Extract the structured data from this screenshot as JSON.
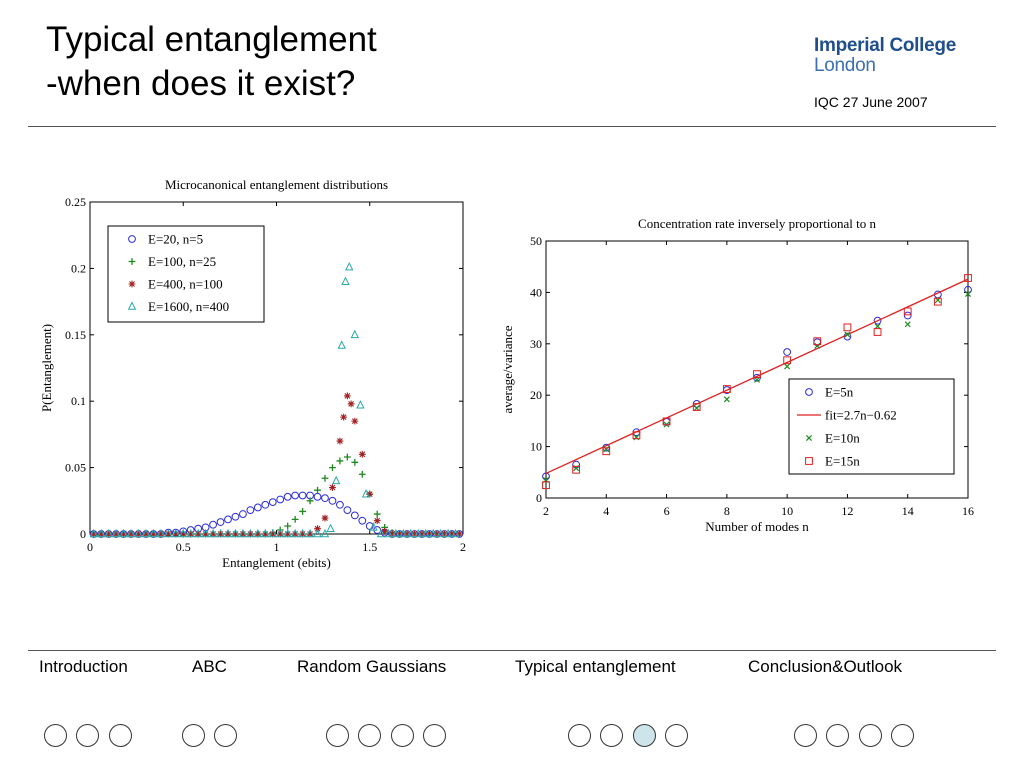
{
  "slide": {
    "title_line1": "Typical entanglement",
    "title_line2": "-when does it exist?",
    "logo_line1": "Imperial College",
    "logo_line2": "London",
    "date": "IQC 27 June 2007"
  },
  "nav": {
    "sections": [
      {
        "label": "Introduction",
        "dots": 3
      },
      {
        "label": "ABC",
        "dots": 2
      },
      {
        "label": "Random Gaussians",
        "dots": 4
      },
      {
        "label": "Typical entanglement",
        "dots": 4,
        "active_index": 2
      },
      {
        "label": "Conclusion&Outlook",
        "dots": 4
      }
    ]
  },
  "chart_data": [
    {
      "type": "scatter",
      "title": "Microcanonical entanglement distributions",
      "xlabel": "Entanglement (ebits)",
      "ylabel": "P(Entanglement)",
      "xlim": [
        0,
        2
      ],
      "ylim": [
        0,
        0.25
      ],
      "xticks": [
        "0",
        "0.5",
        "1",
        "1.5",
        "2"
      ],
      "yticks": [
        "0",
        "0.05",
        "0.1",
        "0.15",
        "0.2",
        "0.25"
      ],
      "legend_position": "top-left",
      "series": [
        {
          "name": "E=20,    n=5",
          "marker": "circle",
          "color": "#2b2bd6",
          "x": [
            0.02,
            0.06,
            0.1,
            0.14,
            0.18,
            0.22,
            0.26,
            0.3,
            0.34,
            0.38,
            0.42,
            0.46,
            0.5,
            0.54,
            0.58,
            0.62,
            0.66,
            0.7,
            0.74,
            0.78,
            0.82,
            0.86,
            0.9,
            0.94,
            0.98,
            1.02,
            1.06,
            1.1,
            1.14,
            1.18,
            1.22,
            1.26,
            1.3,
            1.34,
            1.38,
            1.42,
            1.46,
            1.5,
            1.54,
            1.58,
            1.62,
            1.66,
            1.7,
            1.74,
            1.78,
            1.82,
            1.86,
            1.9,
            1.94,
            1.98
          ],
          "y": [
            0,
            0,
            0,
            0,
            0,
            0,
            0,
            0,
            0,
            0,
            0.001,
            0.001,
            0.002,
            0.003,
            0.004,
            0.005,
            0.007,
            0.009,
            0.011,
            0.013,
            0.015,
            0.018,
            0.02,
            0.022,
            0.024,
            0.026,
            0.028,
            0.029,
            0.029,
            0.029,
            0.028,
            0.027,
            0.025,
            0.022,
            0.018,
            0.014,
            0.01,
            0.006,
            0.003,
            0.001,
            0,
            0,
            0,
            0,
            0,
            0,
            0,
            0,
            0,
            0
          ]
        },
        {
          "name": "E=100,   n=25",
          "marker": "plus",
          "color": "#1e8a1e",
          "x": [
            0.02,
            0.06,
            0.1,
            0.14,
            0.18,
            0.22,
            0.26,
            0.3,
            0.34,
            0.38,
            0.42,
            0.46,
            0.5,
            0.54,
            0.58,
            0.62,
            0.66,
            0.7,
            0.74,
            0.78,
            0.82,
            0.86,
            0.9,
            0.94,
            0.98,
            1.02,
            1.06,
            1.1,
            1.14,
            1.18,
            1.22,
            1.26,
            1.3,
            1.34,
            1.38,
            1.42,
            1.46,
            1.5,
            1.54,
            1.58,
            1.62,
            1.66,
            1.7,
            1.74,
            1.78,
            1.82,
            1.86,
            1.9,
            1.94,
            1.98
          ],
          "y": [
            0,
            0,
            0,
            0,
            0,
            0,
            0,
            0,
            0,
            0,
            0,
            0,
            0,
            0,
            0,
            0,
            0,
            0,
            0,
            0,
            0,
            0,
            0,
            0,
            0.001,
            0.003,
            0.006,
            0.011,
            0.017,
            0.025,
            0.033,
            0.042,
            0.05,
            0.055,
            0.058,
            0.054,
            0.045,
            0.03,
            0.015,
            0.005,
            0.001,
            0,
            0,
            0,
            0,
            0,
            0,
            0,
            0,
            0
          ]
        },
        {
          "name": "E=400,   n=100",
          "marker": "star",
          "color": "#a02020",
          "x": [
            0.02,
            0.06,
            0.1,
            0.14,
            0.18,
            0.22,
            0.26,
            0.3,
            0.34,
            0.38,
            0.42,
            0.46,
            0.5,
            0.54,
            0.58,
            0.62,
            0.66,
            0.7,
            0.74,
            0.78,
            0.82,
            0.86,
            0.9,
            0.94,
            0.98,
            1.02,
            1.06,
            1.1,
            1.14,
            1.18,
            1.22,
            1.26,
            1.3,
            1.34,
            1.36,
            1.38,
            1.4,
            1.42,
            1.46,
            1.5,
            1.54,
            1.58,
            1.62,
            1.66,
            1.7,
            1.74,
            1.78,
            1.82,
            1.86,
            1.9,
            1.94,
            1.98
          ],
          "y": [
            0,
            0,
            0,
            0,
            0,
            0,
            0,
            0,
            0,
            0,
            0,
            0,
            0,
            0,
            0,
            0,
            0,
            0,
            0,
            0,
            0,
            0,
            0,
            0,
            0,
            0,
            0,
            0,
            0,
            0,
            0.004,
            0.012,
            0.035,
            0.07,
            0.088,
            0.104,
            0.098,
            0.085,
            0.06,
            0.03,
            0.01,
            0.002,
            0,
            0,
            0,
            0,
            0,
            0,
            0,
            0,
            0,
            0
          ]
        },
        {
          "name": "E=1600, n=400",
          "marker": "triangle",
          "color": "#2aa8a8",
          "x": [
            0.02,
            0.06,
            0.1,
            0.14,
            0.18,
            0.22,
            0.26,
            0.3,
            0.34,
            0.38,
            0.42,
            0.46,
            0.5,
            0.54,
            0.58,
            0.62,
            0.66,
            0.7,
            0.74,
            0.78,
            0.82,
            0.86,
            0.9,
            0.94,
            0.98,
            1.02,
            1.06,
            1.1,
            1.14,
            1.18,
            1.22,
            1.26,
            1.29,
            1.32,
            1.35,
            1.37,
            1.39,
            1.42,
            1.45,
            1.48,
            1.52,
            1.56,
            1.6,
            1.64,
            1.68,
            1.72,
            1.76,
            1.8,
            1.84,
            1.88,
            1.92,
            1.96
          ],
          "y": [
            0,
            0,
            0,
            0,
            0,
            0,
            0,
            0,
            0,
            0,
            0,
            0,
            0,
            0,
            0,
            0,
            0,
            0,
            0,
            0,
            0,
            0,
            0,
            0,
            0,
            0,
            0,
            0,
            0,
            0,
            0,
            0,
            0.004,
            0.04,
            0.142,
            0.19,
            0.201,
            0.15,
            0.097,
            0.03,
            0.005,
            0,
            0,
            0,
            0,
            0,
            0,
            0,
            0,
            0,
            0,
            0
          ]
        }
      ]
    },
    {
      "type": "scatter",
      "title": "Concentration rate inversely proportional to n",
      "xlabel": "Number of modes n",
      "ylabel": "average/variance",
      "xlim": [
        2,
        16
      ],
      "ylim": [
        0,
        50
      ],
      "xticks": [
        "2",
        "4",
        "6",
        "8",
        "10",
        "12",
        "14",
        "16"
      ],
      "yticks": [
        "0",
        "10",
        "20",
        "30",
        "40",
        "50"
      ],
      "legend_position": "bottom-right",
      "x": [
        2,
        3,
        4,
        5,
        6,
        7,
        8,
        9,
        10,
        11,
        12,
        13,
        14,
        15,
        16
      ],
      "series": [
        {
          "name": "E=5n",
          "marker": "circle",
          "color": "#2b2bd6",
          "values": [
            4.2,
            6.5,
            9.8,
            12.8,
            14.8,
            18.3,
            21.0,
            23.4,
            28.4,
            30.3,
            31.4,
            34.5,
            35.5,
            39.6,
            40.5
          ]
        },
        {
          "name": "fit=2.7n−0.62",
          "marker": "line",
          "color": "#e02020",
          "slope": 2.7,
          "intercept": -0.62
        },
        {
          "name": "E=10n",
          "marker": "x",
          "color": "#1e8a1e",
          "values": [
            3.5,
            5.8,
            9.5,
            11.8,
            14.3,
            17.5,
            19.2,
            23.0,
            25.6,
            29.6,
            31.8,
            33.4,
            33.8,
            38.5,
            39.7
          ]
        },
        {
          "name": "E=15n",
          "marker": "square",
          "color": "#e02020",
          "values": [
            2.5,
            5.5,
            9.1,
            12.2,
            14.9,
            17.7,
            21.2,
            24.1,
            26.8,
            30.5,
            33.2,
            32.3,
            36.3,
            38.2,
            42.8
          ]
        }
      ]
    }
  ]
}
